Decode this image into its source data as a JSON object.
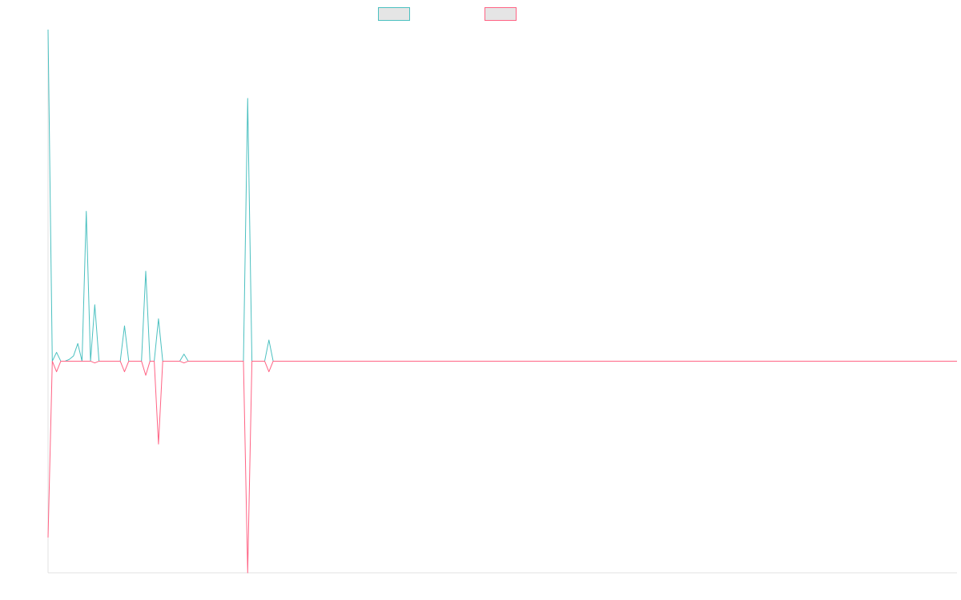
{
  "chart_data": {
    "type": "line",
    "title": "",
    "xlabel": "",
    "ylabel": "",
    "grid": false,
    "legend": "top-center",
    "ylim": [
      -120,
      188
    ],
    "colors": {
      "series_a": "#4bc0c0",
      "series_b": "#ff6384",
      "legend_fill": "#e5e5e5",
      "axis": "#e0e0e0"
    },
    "x_count": 215,
    "series": [
      {
        "color": "#4bc0c0",
        "points": [
          [
            0,
            188
          ],
          [
            1,
            0
          ],
          [
            2,
            5
          ],
          [
            3,
            0
          ],
          [
            4,
            0
          ],
          [
            5,
            1
          ],
          [
            6,
            3
          ],
          [
            7,
            10
          ],
          [
            8,
            0
          ],
          [
            9,
            85
          ],
          [
            10,
            0
          ],
          [
            11,
            32
          ],
          [
            12,
            0
          ],
          [
            17,
            0
          ],
          [
            18,
            20
          ],
          [
            19,
            0
          ],
          [
            22,
            0
          ],
          [
            23,
            51
          ],
          [
            24,
            0
          ],
          [
            25,
            0
          ],
          [
            26,
            24
          ],
          [
            27,
            0
          ],
          [
            31,
            0
          ],
          [
            32,
            4
          ],
          [
            33,
            0
          ],
          [
            46,
            0
          ],
          [
            47,
            149
          ],
          [
            48,
            0
          ],
          [
            51,
            0
          ],
          [
            52,
            12
          ],
          [
            53,
            0
          ],
          [
            214,
            0
          ]
        ]
      },
      {
        "color": "#ff6384",
        "points": [
          [
            0,
            -100
          ],
          [
            1,
            0
          ],
          [
            2,
            -6
          ],
          [
            3,
            0
          ],
          [
            4,
            0
          ],
          [
            5,
            0
          ],
          [
            6,
            0
          ],
          [
            7,
            0
          ],
          [
            8,
            0
          ],
          [
            9,
            0
          ],
          [
            10,
            0
          ],
          [
            11,
            -1
          ],
          [
            12,
            0
          ],
          [
            17,
            0
          ],
          [
            18,
            -6
          ],
          [
            19,
            0
          ],
          [
            22,
            0
          ],
          [
            23,
            -8
          ],
          [
            24,
            0
          ],
          [
            25,
            0
          ],
          [
            26,
            -47
          ],
          [
            27,
            0
          ],
          [
            31,
            0
          ],
          [
            32,
            -1
          ],
          [
            33,
            0
          ],
          [
            46,
            0
          ],
          [
            47,
            -120
          ],
          [
            48,
            0
          ],
          [
            51,
            0
          ],
          [
            52,
            -6
          ],
          [
            53,
            0
          ],
          [
            214,
            0
          ]
        ]
      }
    ]
  }
}
